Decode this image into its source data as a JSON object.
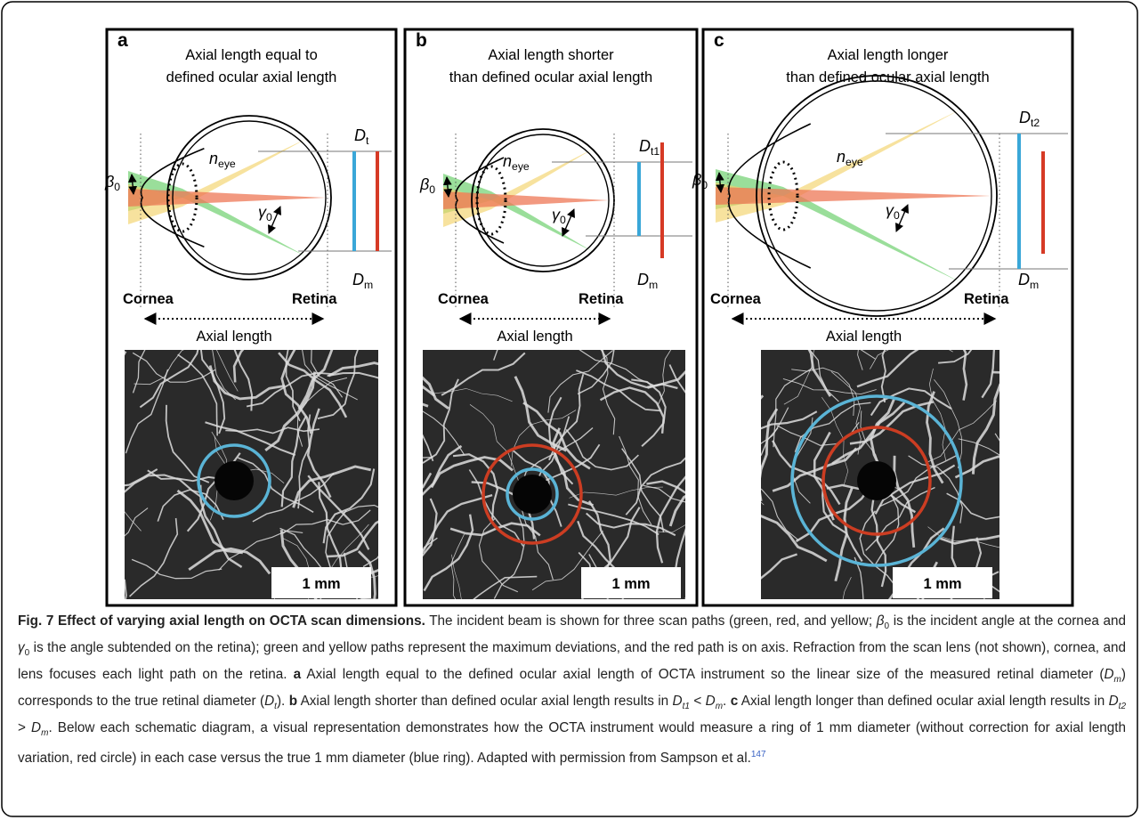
{
  "panels": [
    {
      "label": "a",
      "title": [
        "Axial length equal to",
        "defined ocular axial length"
      ],
      "n_eye": {
        "symbol": "n",
        "subscript": "eye"
      },
      "beta": {
        "symbol": "β",
        "subscript": "0"
      },
      "gamma": {
        "symbol": "γ",
        "subscript": "0"
      },
      "d_true": {
        "symbol": "D",
        "subscript": "t"
      },
      "d_measured": {
        "symbol": "D",
        "subscript": "m"
      },
      "cornea": "Cornea",
      "retina": "Retina",
      "axial_length": "Axial length",
      "scale_bar": "1 mm"
    },
    {
      "label": "b",
      "title": [
        "Axial length shorter",
        "than defined ocular axial length"
      ],
      "n_eye": {
        "symbol": "n",
        "subscript": "eye"
      },
      "beta": {
        "symbol": "β",
        "subscript": "0"
      },
      "gamma": {
        "symbol": "γ",
        "subscript": "0"
      },
      "d_true": {
        "symbol": "D",
        "subscript": "t1"
      },
      "d_measured": {
        "symbol": "D",
        "subscript": "m"
      },
      "cornea": "Cornea",
      "retina": "Retina",
      "axial_length": "Axial length",
      "scale_bar": "1 mm"
    },
    {
      "label": "c",
      "title": [
        "Axial length longer",
        "than defined ocular axial length"
      ],
      "n_eye": {
        "symbol": "n",
        "subscript": "eye"
      },
      "beta": {
        "symbol": "β",
        "subscript": "0"
      },
      "gamma": {
        "symbol": "γ",
        "subscript": "0"
      },
      "d_true": {
        "symbol": "D",
        "subscript": "t2"
      },
      "d_measured": {
        "symbol": "D",
        "subscript": "m"
      },
      "cornea": "Cornea",
      "retina": "Retina",
      "axial_length": "Axial length",
      "scale_bar": "1 mm"
    }
  ],
  "caption": {
    "runs": [
      {
        "text": "Fig. 7 Effect of varying axial length on OCTA scan dimensions.",
        "bold": true
      },
      {
        "text": " The incident beam is shown for three scan paths (green, red, and yellow; "
      },
      {
        "text": "β",
        "italic": true
      },
      {
        "text": "0",
        "sub": true
      },
      {
        "text": " is the incident angle at the cornea and "
      },
      {
        "text": "γ",
        "italic": true
      },
      {
        "text": "0",
        "sub": true
      },
      {
        "text": " is the angle subtended on the retina); green and yellow paths represent the maximum deviations, and the red path is on axis. Refraction from the scan lens (not shown), cornea, and lens focuses each light path on the retina. "
      },
      {
        "text": "a",
        "bold": true
      },
      {
        "text": " Axial length equal to the defined ocular axial length of OCTA instrument so the linear size of the measured retinal diameter ("
      },
      {
        "text": "D",
        "italic": true
      },
      {
        "text": "m",
        "italic": true,
        "sub": true
      },
      {
        "text": ") corresponds to the true retinal diameter ("
      },
      {
        "text": "D",
        "italic": true
      },
      {
        "text": "t",
        "italic": true,
        "sub": true
      },
      {
        "text": "). "
      },
      {
        "text": "b",
        "bold": true
      },
      {
        "text": " Axial length shorter than defined ocular axial length results in "
      },
      {
        "text": "D",
        "italic": true
      },
      {
        "text": "t1",
        "italic": true,
        "sub": true
      },
      {
        "text": " < "
      },
      {
        "text": "D",
        "italic": true
      },
      {
        "text": "m",
        "italic": true,
        "sub": true
      },
      {
        "text": ". "
      },
      {
        "text": "c",
        "bold": true
      },
      {
        "text": " Axial length longer than defined ocular axial length results in "
      },
      {
        "text": "D",
        "italic": true
      },
      {
        "text": "t2",
        "italic": true,
        "sub": true
      },
      {
        "text": " > "
      },
      {
        "text": "D",
        "italic": true
      },
      {
        "text": "m",
        "italic": true,
        "sub": true
      },
      {
        "text": ". Below each schematic diagram, a visual representation demonstrates how the OCTA instrument would measure a ring of 1 mm diameter (without correction for axial length variation, red circle) in each case versus the true 1 mm diameter (blue ring). Adapted with permission from Sampson et al."
      },
      {
        "text": "147",
        "sup": true
      }
    ]
  }
}
